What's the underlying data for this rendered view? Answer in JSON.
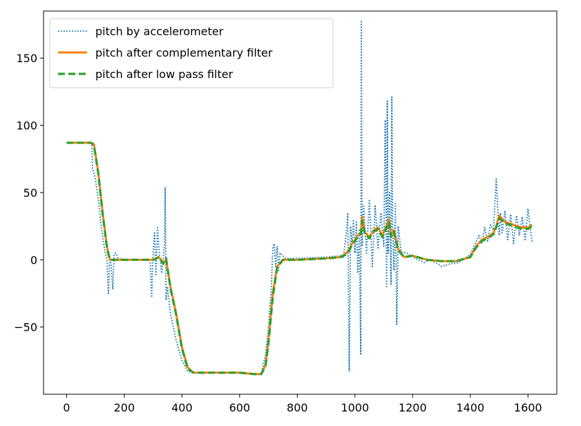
{
  "chart_data": {
    "type": "line",
    "title": "",
    "xlabel": "",
    "ylabel": "",
    "xlim": [
      -80,
      1700
    ],
    "ylim": [
      -100,
      185
    ],
    "xticks": [
      0,
      200,
      400,
      600,
      800,
      1000,
      1200,
      1400,
      1600
    ],
    "xtick_labels": [
      "0",
      "200",
      "400",
      "600",
      "800",
      "1000",
      "1200",
      "1400",
      "1600"
    ],
    "yticks": [
      -50,
      0,
      50,
      100,
      150
    ],
    "ytick_labels": [
      "−50",
      "0",
      "50",
      "100",
      "150"
    ],
    "grid": false,
    "legend_position": "top-left",
    "series": [
      {
        "name": "pitch by accelerometer",
        "color": "#1f77b4",
        "style": "dotted",
        "x": [
          0,
          85,
          87,
          90,
          100,
          110,
          120,
          130,
          140,
          145,
          150,
          155,
          160,
          165,
          170,
          180,
          200,
          250,
          290,
          295,
          300,
          305,
          310,
          315,
          320,
          330,
          340,
          342,
          345,
          350,
          360,
          380,
          400,
          420,
          440,
          480,
          550,
          600,
          650,
          675,
          690,
          700,
          710,
          715,
          720,
          725,
          730,
          735,
          740,
          760,
          800,
          900,
          950,
          960,
          970,
          975,
          980,
          985,
          990,
          995,
          1000,
          1005,
          1010,
          1015,
          1020,
          1022,
          1025,
          1030,
          1040,
          1050,
          1060,
          1070,
          1080,
          1090,
          1100,
          1105,
          1110,
          1112,
          1115,
          1120,
          1125,
          1128,
          1130,
          1135,
          1140,
          1145,
          1150,
          1160,
          1180,
          1200,
          1220,
          1240,
          1260,
          1280,
          1300,
          1330,
          1360,
          1400,
          1430,
          1440,
          1450,
          1460,
          1470,
          1480,
          1490,
          1500,
          1505,
          1510,
          1520,
          1530,
          1540,
          1550,
          1560,
          1570,
          1580,
          1590,
          1600,
          1610,
          1615
        ],
        "values": [
          87,
          87,
          87,
          68,
          60,
          45,
          25,
          10,
          0,
          -25,
          2,
          -5,
          -22,
          4,
          5,
          1,
          0,
          0,
          0,
          -28,
          5,
          20,
          -12,
          25,
          8,
          -10,
          12,
          54,
          -30,
          -20,
          -40,
          -60,
          -75,
          -83,
          -84,
          -84,
          -84,
          -84,
          -85,
          -85,
          -70,
          -50,
          -20,
          8,
          12,
          -5,
          10,
          -8,
          5,
          1,
          1,
          2,
          3,
          2,
          20,
          35,
          -83,
          25,
          12,
          30,
          5,
          28,
          -10,
          22,
          -70,
          178,
          10,
          40,
          5,
          45,
          -5,
          40,
          8,
          35,
          10,
          104,
          -20,
          118,
          5,
          50,
          -18,
          121,
          30,
          -8,
          42,
          -48,
          25,
          6,
          5,
          2,
          0,
          -2,
          0,
          -2,
          -5,
          -3,
          -2,
          4,
          18,
          12,
          24,
          14,
          26,
          22,
          60,
          18,
          35,
          20,
          36,
          15,
          34,
          12,
          33,
          18,
          32,
          14,
          38,
          20,
          13
        ]
      },
      {
        "name": "pitch after complementary filter",
        "color": "#ff7f0e",
        "style": "solid",
        "x": [
          0,
          85,
          95,
          110,
          125,
          140,
          150,
          200,
          280,
          300,
          320,
          335,
          345,
          360,
          380,
          400,
          420,
          440,
          480,
          550,
          600,
          650,
          675,
          690,
          700,
          715,
          730,
          750,
          800,
          900,
          950,
          970,
          980,
          990,
          1000,
          1010,
          1020,
          1025,
          1035,
          1050,
          1065,
          1080,
          1095,
          1110,
          1118,
          1125,
          1135,
          1150,
          1170,
          1200,
          1250,
          1300,
          1350,
          1400,
          1420,
          1440,
          1460,
          1480,
          1490,
          1500,
          1520,
          1540,
          1560,
          1580,
          1600,
          1615
        ],
        "values": [
          87,
          87,
          86,
          65,
          35,
          10,
          0,
          0,
          0,
          0,
          2,
          -2,
          0,
          -20,
          -40,
          -65,
          -80,
          -84,
          -84,
          -84,
          -84,
          -85,
          -85,
          -78,
          -60,
          -25,
          -5,
          0,
          0,
          1,
          2,
          5,
          8,
          12,
          15,
          18,
          20,
          32,
          20,
          17,
          22,
          24,
          18,
          26,
          30,
          18,
          22,
          8,
          2,
          3,
          0,
          -1,
          -1,
          2,
          10,
          15,
          17,
          20,
          25,
          33,
          28,
          27,
          25,
          24,
          24,
          26
        ]
      },
      {
        "name": "pitch after low pass filter",
        "color": "#2ca02c",
        "style": "dashed",
        "x": [
          0,
          85,
          95,
          110,
          125,
          140,
          150,
          200,
          280,
          300,
          320,
          335,
          345,
          360,
          380,
          400,
          420,
          440,
          480,
          550,
          600,
          650,
          675,
          690,
          700,
          715,
          730,
          750,
          800,
          900,
          950,
          970,
          980,
          990,
          1000,
          1010,
          1020,
          1025,
          1035,
          1050,
          1065,
          1080,
          1095,
          1110,
          1118,
          1125,
          1135,
          1150,
          1170,
          1200,
          1250,
          1300,
          1350,
          1400,
          1420,
          1440,
          1460,
          1480,
          1490,
          1500,
          1520,
          1540,
          1560,
          1580,
          1600,
          1615
        ],
        "values": [
          87,
          87,
          85,
          64,
          34,
          9,
          0,
          0,
          0,
          0,
          2,
          -3,
          1,
          -21,
          -41,
          -66,
          -81,
          -84,
          -84,
          -84,
          -84,
          -85,
          -85,
          -79,
          -62,
          -28,
          -6,
          0,
          0,
          1,
          2,
          4,
          7,
          11,
          14,
          17,
          19,
          29,
          19,
          16,
          21,
          23,
          17,
          24,
          28,
          17,
          21,
          7,
          2,
          3,
          0,
          -1,
          -1,
          2,
          9,
          14,
          16,
          19,
          24,
          31,
          27,
          26,
          24,
          23,
          23,
          25
        ]
      }
    ]
  }
}
